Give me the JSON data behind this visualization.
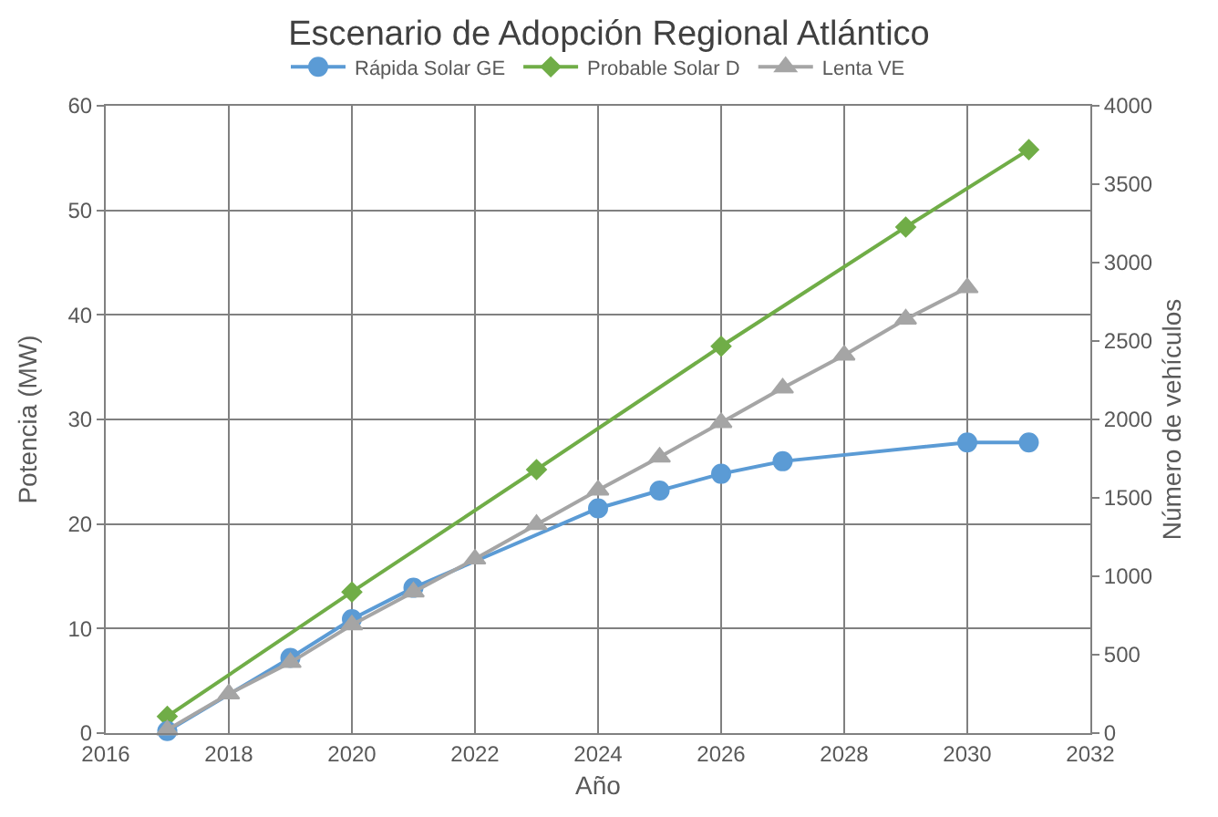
{
  "chart_data": {
    "type": "line",
    "title": "Escenario de Adopción Regional Atlántico",
    "xlabel": "Año",
    "ylabel": "Potencia (MW)",
    "y2label": "Número de vehículos",
    "xlim": [
      2016,
      2032
    ],
    "xticks": [
      2016,
      2018,
      2020,
      2022,
      2024,
      2026,
      2028,
      2030,
      2032
    ],
    "ylim": [
      0,
      60
    ],
    "yticks": [
      0,
      10,
      20,
      30,
      40,
      50,
      60
    ],
    "y2lim": [
      0,
      4000
    ],
    "y2ticks": [
      0,
      500,
      1000,
      1500,
      2000,
      2500,
      3000,
      3500,
      4000
    ],
    "grid": true,
    "legend": "top",
    "line_style": "solid",
    "series": [
      {
        "name": "Rápida Solar GE",
        "color": "#5b9bd5",
        "marker": "circle",
        "x": [
          2017,
          2019,
          2020,
          2021,
          2024,
          2025,
          2026,
          2027,
          2030,
          2031
        ],
        "values": [
          0.2,
          7.2,
          10.9,
          13.9,
          21.5,
          23.2,
          24.8,
          26.0,
          27.8,
          27.8
        ]
      },
      {
        "name": "Probable Solar D",
        "color": "#70ad47",
        "marker": "diamond",
        "x": [
          2017,
          2020,
          2023,
          2026,
          2029,
          2031
        ],
        "values": [
          1.6,
          13.5,
          25.2,
          37.0,
          48.4,
          55.8
        ]
      },
      {
        "name": "Lenta VE",
        "color": "#a5a5a5",
        "marker": "triangle",
        "axis": "y2",
        "x": [
          2017,
          2018,
          2019,
          2020,
          2021,
          2022,
          2023,
          2024,
          2025,
          2026,
          2027,
          2028,
          2029,
          2030
        ],
        "values": [
          20,
          250,
          450,
          690,
          900,
          1110,
          1330,
          1550,
          1760,
          1980,
          2200,
          2410,
          2640,
          2840
        ]
      }
    ]
  }
}
